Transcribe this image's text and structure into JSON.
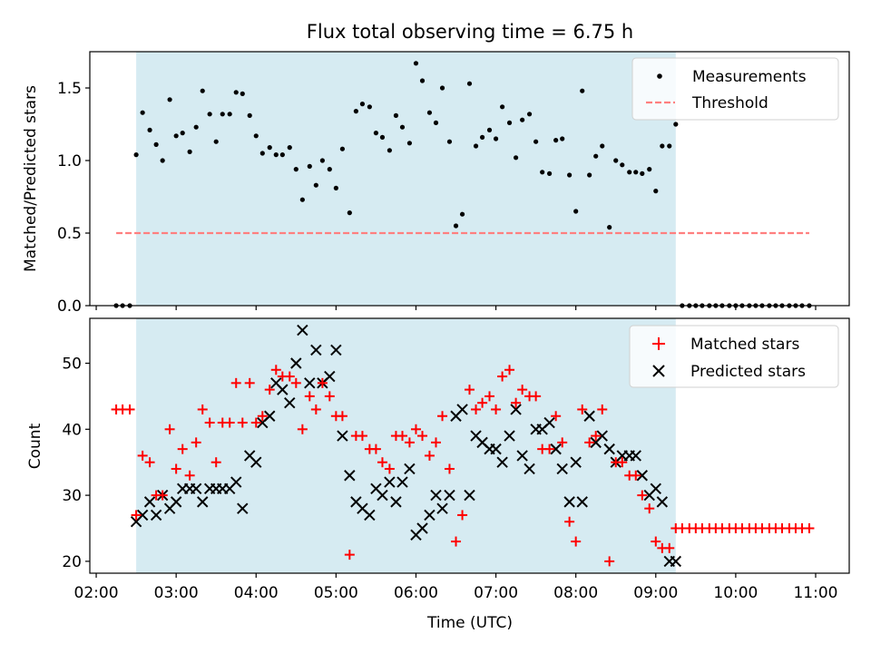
{
  "figure": {
    "title": "Flux total observing time = 6.75 h"
  },
  "chart_data": [
    {
      "type": "scatter",
      "ylabel": "Matched/Predicted stars",
      "xlim_hours": [
        1.92,
        11.42
      ],
      "ylim": [
        0,
        1.75
      ],
      "y_ticks": [
        0.0,
        0.5,
        1.0,
        1.5
      ],
      "y_tick_labels": [
        "0.0",
        "0.5",
        "1.0",
        "1.5"
      ],
      "observing_window_hours": [
        2.5,
        9.25
      ],
      "grid": false,
      "legend_position": "top-right",
      "series": [
        {
          "name": "Measurements",
          "color": "#000000",
          "marker": "dot",
          "x": [
            2.25,
            2.33,
            2.42,
            2.5,
            2.58,
            2.67,
            2.75,
            2.83,
            2.92,
            3.0,
            3.08,
            3.17,
            3.25,
            3.33,
            3.42,
            3.5,
            3.58,
            3.67,
            3.75,
            3.83,
            3.92,
            4.0,
            4.08,
            4.17,
            4.25,
            4.33,
            4.42,
            4.5,
            4.58,
            4.67,
            4.75,
            4.83,
            4.92,
            5.0,
            5.08,
            5.17,
            5.25,
            5.33,
            5.42,
            5.5,
            5.58,
            5.67,
            5.75,
            5.83,
            5.92,
            6.0,
            6.08,
            6.17,
            6.25,
            6.33,
            6.42,
            6.5,
            6.58,
            6.67,
            6.75,
            6.83,
            6.92,
            7.0,
            7.08,
            7.17,
            7.25,
            7.33,
            7.42,
            7.5,
            7.58,
            7.67,
            7.75,
            7.83,
            7.92,
            8.0,
            8.08,
            8.17,
            8.25,
            8.33,
            8.42,
            8.5,
            8.58,
            8.67,
            8.75,
            8.83,
            8.92,
            9.0,
            9.08,
            9.17,
            9.25,
            9.33,
            9.42,
            9.5,
            9.58,
            9.67,
            9.75,
            9.83,
            9.92,
            10.0,
            10.08,
            10.17,
            10.25,
            10.33,
            10.42,
            10.5,
            10.58,
            10.67,
            10.75,
            10.83,
            10.92
          ],
          "y": [
            0.0,
            0.0,
            0.0,
            1.04,
            1.33,
            1.21,
            1.11,
            1.0,
            1.42,
            1.17,
            1.19,
            1.06,
            1.23,
            1.48,
            1.32,
            1.13,
            1.32,
            1.32,
            1.47,
            1.46,
            1.31,
            1.17,
            1.05,
            1.09,
            1.04,
            1.04,
            1.09,
            0.94,
            0.73,
            0.96,
            0.83,
            1.0,
            0.94,
            0.81,
            1.08,
            0.64,
            1.34,
            1.39,
            1.37,
            1.19,
            1.16,
            1.07,
            1.31,
            1.23,
            1.12,
            1.67,
            1.55,
            1.33,
            1.26,
            1.5,
            1.13,
            0.55,
            0.63,
            1.53,
            1.1,
            1.16,
            1.21,
            1.15,
            1.37,
            1.26,
            1.02,
            1.28,
            1.32,
            1.13,
            0.92,
            0.91,
            1.14,
            1.15,
            0.9,
            0.65,
            1.48,
            0.9,
            1.03,
            1.1,
            0.54,
            1.0,
            0.97,
            0.92,
            0.92,
            0.91,
            0.94,
            0.79,
            1.1,
            1.1,
            1.25,
            0.0,
            0.0,
            0.0,
            0.0,
            0.0,
            0.0,
            0.0,
            0.0,
            0.0,
            0.0,
            0.0,
            0.0,
            0.0,
            0.0,
            0.0,
            0.0,
            0.0,
            0.0,
            0.0,
            0.0
          ]
        },
        {
          "name": "Threshold",
          "color": "#ff7f7f",
          "style": "dashed",
          "x": [
            2.25,
            10.92
          ],
          "y": [
            0.5,
            0.5
          ]
        }
      ]
    },
    {
      "type": "scatter",
      "xlabel": "Time (UTC)",
      "ylabel": "Count",
      "xlim_hours": [
        1.92,
        11.42
      ],
      "ylim": [
        18.2,
        56.8
      ],
      "x_ticks_hours": [
        2,
        3,
        4,
        5,
        6,
        7,
        8,
        9,
        10,
        11
      ],
      "x_tick_labels": [
        "02:00",
        "03:00",
        "04:00",
        "05:00",
        "06:00",
        "07:00",
        "08:00",
        "09:00",
        "10:00",
        "11:00"
      ],
      "y_ticks": [
        20,
        30,
        40,
        50
      ],
      "y_tick_labels": [
        "20",
        "30",
        "40",
        "50"
      ],
      "observing_window_hours": [
        2.5,
        9.25
      ],
      "grid": false,
      "legend_position": "top-right",
      "series": [
        {
          "name": "Matched stars",
          "color": "#ff0000",
          "marker": "plus",
          "x": [
            2.25,
            2.33,
            2.42,
            2.5,
            2.58,
            2.67,
            2.75,
            2.83,
            2.92,
            3.0,
            3.08,
            3.17,
            3.25,
            3.33,
            3.42,
            3.5,
            3.58,
            3.67,
            3.75,
            3.83,
            3.92,
            4.0,
            4.08,
            4.17,
            4.25,
            4.33,
            4.42,
            4.5,
            4.58,
            4.67,
            4.75,
            4.83,
            4.92,
            5.0,
            5.08,
            5.17,
            5.25,
            5.33,
            5.42,
            5.5,
            5.58,
            5.67,
            5.75,
            5.83,
            5.92,
            6.0,
            6.08,
            6.17,
            6.25,
            6.33,
            6.42,
            6.5,
            6.58,
            6.67,
            6.75,
            6.83,
            6.92,
            7.0,
            7.08,
            7.17,
            7.25,
            7.33,
            7.42,
            7.5,
            7.58,
            7.67,
            7.75,
            7.83,
            7.92,
            8.0,
            8.08,
            8.17,
            8.25,
            8.33,
            8.42,
            8.5,
            8.58,
            8.67,
            8.75,
            8.83,
            8.92,
            9.0,
            9.08,
            9.17,
            9.25,
            9.33,
            9.42,
            9.5,
            9.58,
            9.67,
            9.75,
            9.83,
            9.92,
            10.0,
            10.08,
            10.17,
            10.25,
            10.33,
            10.42,
            10.5,
            10.58,
            10.67,
            10.75,
            10.83,
            10.92
          ],
          "y": [
            43,
            43,
            43,
            27,
            36,
            35,
            30,
            30,
            40,
            34,
            37,
            33,
            38,
            43,
            41,
            35,
            41,
            41,
            47,
            41,
            47,
            41,
            42,
            46,
            49,
            48,
            48,
            47,
            40,
            45,
            43,
            47,
            45,
            42,
            42,
            21,
            39,
            39,
            37,
            37,
            35,
            34,
            39,
            39,
            38,
            40,
            39,
            36,
            38,
            42,
            34,
            23,
            27,
            46,
            43,
            44,
            45,
            43,
            48,
            49,
            44,
            46,
            45,
            45,
            37,
            37,
            42,
            38,
            26,
            23,
            43,
            38,
            39,
            43,
            20,
            35,
            35,
            33,
            33,
            30,
            28,
            23,
            22,
            22,
            25,
            25,
            25,
            25,
            25,
            25,
            25,
            25,
            25,
            25,
            25,
            25,
            25,
            25,
            25,
            25,
            25,
            25,
            25,
            25,
            25
          ]
        },
        {
          "name": "Predicted stars",
          "color": "#000000",
          "marker": "x",
          "x": [
            2.5,
            2.58,
            2.67,
            2.75,
            2.83,
            2.92,
            3.0,
            3.08,
            3.17,
            3.25,
            3.33,
            3.42,
            3.5,
            3.58,
            3.67,
            3.75,
            3.83,
            3.92,
            4.0,
            4.08,
            4.17,
            4.25,
            4.33,
            4.42,
            4.5,
            4.58,
            4.67,
            4.75,
            4.83,
            4.92,
            5.0,
            5.08,
            5.17,
            5.25,
            5.33,
            5.42,
            5.5,
            5.58,
            5.67,
            5.75,
            5.83,
            5.92,
            6.0,
            6.08,
            6.17,
            6.25,
            6.33,
            6.42,
            6.5,
            6.58,
            6.67,
            6.75,
            6.83,
            6.92,
            7.0,
            7.08,
            7.17,
            7.25,
            7.33,
            7.42,
            7.5,
            7.58,
            7.67,
            7.75,
            7.83,
            7.92,
            8.0,
            8.08,
            8.17,
            8.25,
            8.33,
            8.42,
            8.5,
            8.58,
            8.67,
            8.75,
            8.83,
            8.92,
            9.0,
            9.08,
            9.17,
            9.25
          ],
          "y": [
            26,
            27,
            29,
            27,
            30,
            28,
            29,
            31,
            31,
            31,
            29,
            31,
            31,
            31,
            31,
            32,
            28,
            36,
            35,
            41,
            42,
            47,
            46,
            44,
            50,
            55,
            47,
            52,
            47,
            48,
            52,
            39,
            33,
            29,
            28,
            27,
            31,
            30,
            32,
            29,
            32,
            34,
            24,
            25,
            27,
            30,
            28,
            30,
            42,
            43,
            30,
            39,
            38,
            37,
            37,
            35,
            39,
            43,
            36,
            34,
            40,
            40,
            41,
            37,
            34,
            29,
            35,
            29,
            42,
            38,
            39,
            37,
            35,
            36,
            36,
            36,
            33,
            30,
            31,
            29,
            20,
            20
          ]
        }
      ]
    }
  ]
}
